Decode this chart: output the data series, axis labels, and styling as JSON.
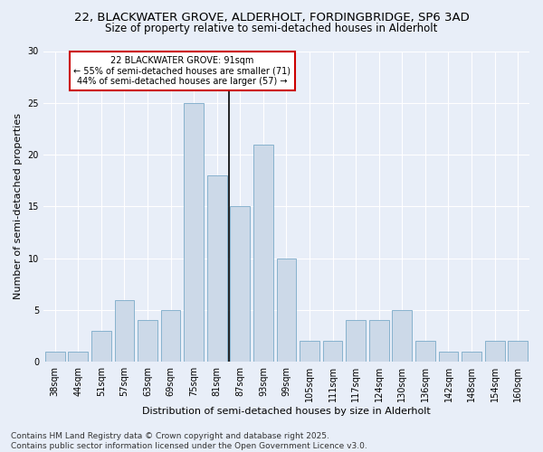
{
  "title_line1": "22, BLACKWATER GROVE, ALDERHOLT, FORDINGBRIDGE, SP6 3AD",
  "title_line2": "Size of property relative to semi-detached houses in Alderholt",
  "xlabel": "Distribution of semi-detached houses by size in Alderholt",
  "ylabel": "Number of semi-detached properties",
  "footer_line1": "Contains HM Land Registry data © Crown copyright and database right 2025.",
  "footer_line2": "Contains public sector information licensed under the Open Government Licence v3.0.",
  "categories": [
    "38sqm",
    "44sqm",
    "51sqm",
    "57sqm",
    "63sqm",
    "69sqm",
    "75sqm",
    "81sqm",
    "87sqm",
    "93sqm",
    "99sqm",
    "105sqm",
    "111sqm",
    "117sqm",
    "124sqm",
    "130sqm",
    "136sqm",
    "142sqm",
    "148sqm",
    "154sqm",
    "160sqm"
  ],
  "values": [
    1,
    1,
    3,
    6,
    4,
    5,
    25,
    18,
    15,
    21,
    10,
    2,
    2,
    4,
    4,
    5,
    2,
    1,
    1,
    2,
    2
  ],
  "bar_color": "#ccd9e8",
  "bar_edge_color": "#7aaac8",
  "highlight_line_color": "#000000",
  "annotation_text": "22 BLACKWATER GROVE: 91sqm\n← 55% of semi-detached houses are smaller (71)\n44% of semi-detached houses are larger (57) →",
  "annotation_box_color": "#ffffff",
  "annotation_box_edge_color": "#cc0000",
  "ylim": [
    0,
    30
  ],
  "yticks": [
    0,
    5,
    10,
    15,
    20,
    25,
    30
  ],
  "bg_color": "#e8eef8",
  "plot_bg_color": "#e8eef8",
  "grid_color": "#ffffff",
  "title_fontsize": 9.5,
  "subtitle_fontsize": 8.5,
  "axis_label_fontsize": 8,
  "tick_fontsize": 7,
  "annotation_fontsize": 7,
  "footer_fontsize": 6.5
}
